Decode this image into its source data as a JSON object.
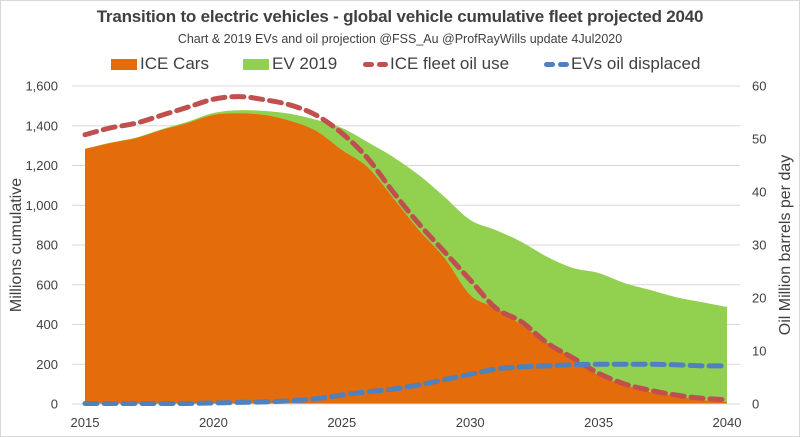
{
  "chart_data": {
    "type": "area",
    "title": "Transition to electric vehicles - global vehicle cumulative fleet projected 2040",
    "subtitle": "Chart & 2019 EVs and oil projection @FSS_Au @ProfRayWills  update 4Jul2020",
    "x": [
      2015,
      2016,
      2017,
      2018,
      2019,
      2020,
      2021,
      2022,
      2023,
      2024,
      2025,
      2026,
      2027,
      2028,
      2029,
      2030,
      2031,
      2032,
      2033,
      2034,
      2035,
      2036,
      2037,
      2038,
      2039,
      2040
    ],
    "xticks": [
      "2015",
      "2020",
      "2025",
      "2030",
      "2035",
      "2040"
    ],
    "xtick_values": [
      2015,
      2020,
      2025,
      2030,
      2035,
      2040
    ],
    "xlim": [
      2015,
      2040
    ],
    "ylabel": "Millions cumulative",
    "y2label": "Oil Million barrels per day",
    "ylim": [
      0,
      1600
    ],
    "y2lim": [
      0,
      60
    ],
    "yticks": [
      "0",
      "200",
      "400",
      "600",
      "800",
      "1,000",
      "1,200",
      "1,400",
      "1,600"
    ],
    "ytick_values": [
      0,
      200,
      400,
      600,
      800,
      1000,
      1200,
      1400,
      1600
    ],
    "y2ticks": [
      "0",
      "10",
      "20",
      "30",
      "40",
      "50",
      "60"
    ],
    "y2tick_values": [
      0,
      10,
      20,
      30,
      40,
      50,
      60
    ],
    "grid": true,
    "legend_position": "top",
    "series": [
      {
        "name": "ICE Cars",
        "kind": "stacked-area",
        "axis": "left",
        "color": "#e46c0a",
        "values": [
          1283,
          1313,
          1338,
          1379,
          1414,
          1454,
          1462,
          1454,
          1424,
          1374,
          1278,
          1192,
          1036,
          875,
          734,
          548,
          483,
          397,
          307,
          231,
          146,
          96,
          60,
          40,
          20,
          10
        ]
      },
      {
        "name": "EV 2019",
        "kind": "stacked-area",
        "axis": "left",
        "color": "#92d050",
        "values": [
          1,
          2,
          3,
          4,
          6,
          10,
          16,
          20,
          36,
          56,
          111,
          126,
          207,
          277,
          308,
          378,
          392,
          418,
          433,
          453,
          513,
          513,
          514,
          498,
          493,
          478
        ]
      },
      {
        "name": "ICE fleet oil use",
        "kind": "dashed-line",
        "axis": "right",
        "color": "#c0504d",
        "values": [
          50.8,
          52.1,
          53.0,
          54.5,
          56.0,
          57.5,
          58.0,
          57.4,
          56.4,
          54.5,
          51.1,
          46.4,
          40.0,
          34.0,
          28.7,
          23.4,
          18.1,
          15.5,
          11.5,
          8.7,
          5.8,
          3.8,
          2.6,
          1.7,
          1.1,
          0.8
        ]
      },
      {
        "name": "EVs oil displaced",
        "kind": "dashed-line",
        "axis": "right",
        "color": "#4f81bd",
        "values": [
          0.1,
          0.1,
          0.1,
          0.1,
          0.1,
          0.2,
          0.3,
          0.4,
          0.6,
          1.0,
          1.7,
          2.3,
          2.8,
          3.6,
          4.6,
          5.6,
          6.6,
          7.0,
          7.2,
          7.4,
          7.5,
          7.5,
          7.5,
          7.4,
          7.2,
          7.2
        ]
      }
    ]
  }
}
